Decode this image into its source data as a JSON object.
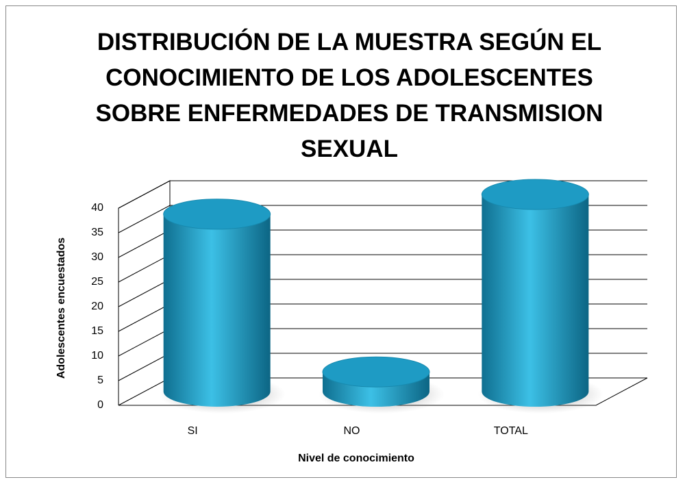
{
  "chart_data": {
    "type": "bar3d",
    "title": "DISTRIBUCIÓN DE LA MUESTRA SEGÚN EL CONOCIMIENTO DE LOS ADOLESCENTES SOBRE ENFERMEDADES DE TRANSMISION SEXUAL",
    "x_label": "Nivel de conocimiento",
    "y_label": "Adolescentes encuestados",
    "categories": [
      "SI",
      "NO",
      "TOTAL"
    ],
    "values": [
      36,
      4,
      40
    ],
    "color": "#1e9bc4",
    "ylim": [
      0,
      40
    ],
    "yticks": [
      0,
      5,
      10,
      15,
      20,
      25,
      30,
      35,
      40
    ],
    "grid": true
  }
}
